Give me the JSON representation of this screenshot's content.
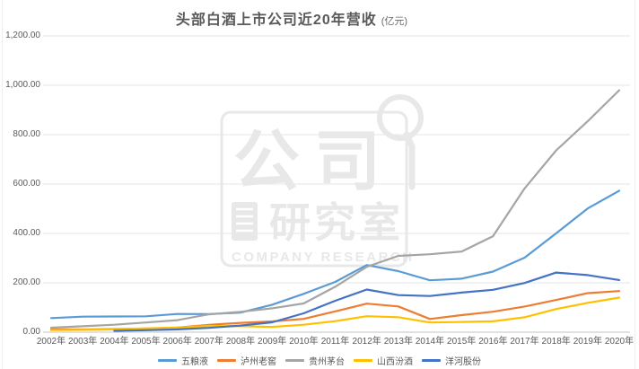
{
  "title": {
    "text": "头部白酒上市公司近20年营收",
    "unit": "(亿元)"
  },
  "watermark": {
    "main": "公司",
    "sub": "研究室",
    "caption": "COMPANY RESEARCH"
  },
  "chart_data": {
    "type": "line",
    "title": "头部白酒上市公司近20年营收 (亿元)",
    "categories": [
      "2002年",
      "2003年",
      "2004年",
      "2005年",
      "2006年",
      "2007年",
      "2008年",
      "2009年",
      "2010年",
      "2011年",
      "2012年",
      "2013年",
      "2014年",
      "2015年",
      "2016年",
      "2017年",
      "2018年",
      "2019年",
      "2020年"
    ],
    "series": [
      {
        "name": "五粮液",
        "color": "#5B9BD5",
        "values": [
          57.0,
          63.0,
          63.7,
          64.2,
          73.9,
          73.3,
          79.3,
          111.3,
          155.4,
          203.5,
          272.0,
          247.2,
          210.1,
          216.6,
          245.4,
          301.9,
          400.3,
          501.2,
          573.2
        ]
      },
      {
        "name": "泸州老窖",
        "color": "#ED7D31",
        "values": [
          11.2,
          11.0,
          12.8,
          14.6,
          18.4,
          29.8,
          37.9,
          43.7,
          53.7,
          84.3,
          115.6,
          104.3,
          53.5,
          69.0,
          83.0,
          103.9,
          130.6,
          158.2,
          166.5
        ]
      },
      {
        "name": "贵州茅台",
        "color": "#A5A5A5",
        "values": [
          18.3,
          24.0,
          30.1,
          39.3,
          48.6,
          72.4,
          82.4,
          96.7,
          116.3,
          184.0,
          264.6,
          309.2,
          315.7,
          326.6,
          388.6,
          582.2,
          736.4,
          854.3,
          979.9
        ]
      },
      {
        "name": "山西汾酒",
        "color": "#FFC000",
        "values": [
          8.4,
          9.5,
          11.4,
          15.5,
          18.5,
          25.0,
          24.4,
          21.4,
          30.2,
          44.8,
          64.8,
          60.9,
          39.1,
          41.3,
          44.1,
          60.4,
          93.8,
          118.8,
          139.9
        ]
      },
      {
        "name": "洋河股份",
        "color": "#4472C4",
        "values": [
          null,
          null,
          5.4,
          7.9,
          11.3,
          17.6,
          26.8,
          40.0,
          76.2,
          127.4,
          172.7,
          150.2,
          146.6,
          160.5,
          171.8,
          199.2,
          241.6,
          231.3,
          211.3
        ]
      }
    ],
    "ylim": [
      0,
      1200
    ],
    "y_ticks": [
      0,
      200,
      400,
      600,
      800,
      1000,
      1200
    ],
    "y_tick_labels": [
      "0.00",
      "200.00",
      "400.00",
      "600.00",
      "800.00",
      "1,000.00",
      "1,200.00"
    ],
    "grid": "horizontal-only",
    "legend_position": "bottom"
  },
  "colors": {
    "grid_line": "#e6e6e6",
    "axis_line": "#c3c3c3",
    "tick_text": "#595959",
    "title_text": "#595959",
    "watermark": "#e8e8e8",
    "series_blue": "#5B9BD5",
    "series_orange": "#ED7D31",
    "series_gray": "#A5A5A5",
    "series_yellow": "#FFC000",
    "series_darkblue": "#4472C4"
  }
}
